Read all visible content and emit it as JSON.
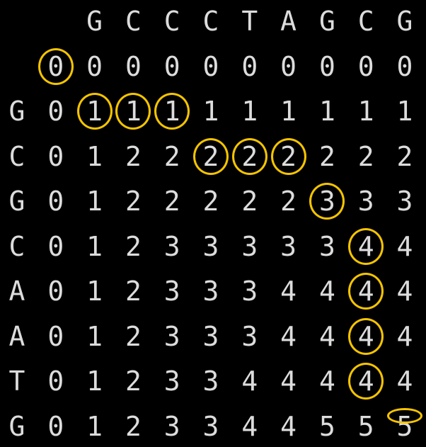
{
  "table": {
    "col_headers": [
      "",
      "",
      "G",
      "C",
      "C",
      "C",
      "T",
      "A",
      "G",
      "C",
      "G"
    ],
    "rows": [
      {
        "label": "",
        "values": [
          "0",
          "0",
          "0",
          "0",
          "0",
          "0",
          "0",
          "0",
          "0",
          "0"
        ]
      },
      {
        "label": "G",
        "values": [
          "0",
          "1",
          "1",
          "1",
          "1",
          "1",
          "1",
          "1",
          "1",
          "1"
        ]
      },
      {
        "label": "C",
        "values": [
          "0",
          "1",
          "2",
          "2",
          "2",
          "2",
          "2",
          "2",
          "2",
          "2"
        ]
      },
      {
        "label": "G",
        "values": [
          "0",
          "1",
          "2",
          "2",
          "2",
          "2",
          "2",
          "3",
          "3",
          "3"
        ]
      },
      {
        "label": "C",
        "values": [
          "0",
          "1",
          "2",
          "3",
          "3",
          "3",
          "3",
          "3",
          "4",
          "4"
        ]
      },
      {
        "label": "A",
        "values": [
          "0",
          "1",
          "2",
          "3",
          "3",
          "3",
          "4",
          "4",
          "4",
          "4"
        ]
      },
      {
        "label": "A",
        "values": [
          "0",
          "1",
          "2",
          "3",
          "3",
          "3",
          "4",
          "4",
          "4",
          "4"
        ]
      },
      {
        "label": "T",
        "values": [
          "0",
          "1",
          "2",
          "3",
          "3",
          "4",
          "4",
          "4",
          "4",
          "4"
        ]
      },
      {
        "label": "G",
        "values": [
          "0",
          "1",
          "2",
          "3",
          "3",
          "4",
          "4",
          "5",
          "5",
          "5"
        ]
      }
    ],
    "highlighted_cells": [
      [
        0,
        0
      ],
      [
        1,
        1
      ],
      [
        1,
        2
      ],
      [
        1,
        3
      ],
      [
        2,
        4
      ],
      [
        2,
        5
      ],
      [
        2,
        6
      ],
      [
        3,
        7
      ],
      [
        4,
        8
      ],
      [
        5,
        8
      ],
      [
        6,
        8
      ],
      [
        7,
        8
      ],
      [
        8,
        9
      ]
    ]
  },
  "colors": {
    "background": "#000000",
    "text": "#dcdcdc",
    "highlight": "#f5c400"
  }
}
